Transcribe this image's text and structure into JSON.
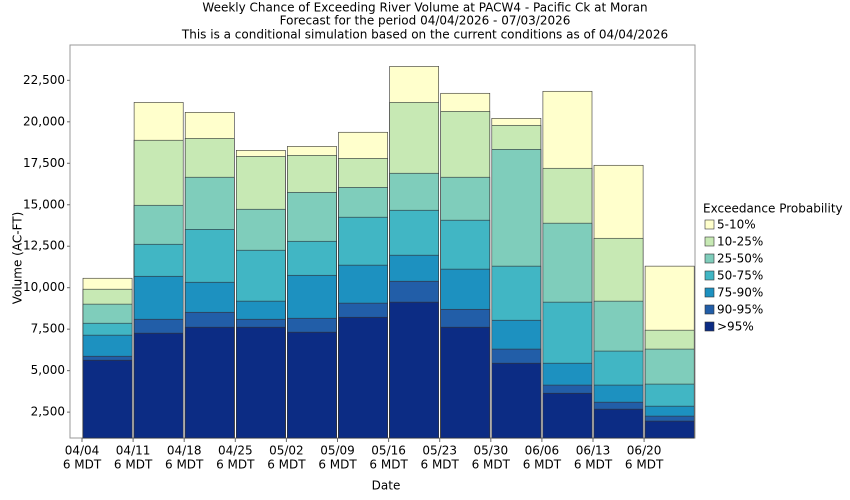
{
  "chart_data": {
    "type": "bar",
    "title": "Weekly Chance of Exceeding River Volume at PACW4 - Pacific Ck at Moran",
    "subtitle": "Forecast for the period 04/04/2026 - 07/03/2026",
    "note": "This is a conditional simulation based on the current conditions as of 04/04/2026",
    "x_label": "Date",
    "y_label": "Volume (AC-FT)",
    "legend_title": "Exceedance Probability",
    "categories": [
      "04/04",
      "04/11",
      "04/18",
      "04/25",
      "05/02",
      "05/09",
      "05/16",
      "05/23",
      "05/30",
      "06/06",
      "06/13",
      "06/20"
    ],
    "category_times": [
      "6 MDT",
      "6 MDT",
      "6 MDT",
      "6 MDT",
      "6 MDT",
      "6 MDT",
      "6 MDT",
      "6 MDT",
      "6 MDT",
      "6 MDT",
      "6 MDT",
      "6 MDT"
    ],
    "series": [
      {
        "name": "5-10%",
        "color": "#ffffcc",
        "values": [
          10570,
          21170,
          20570,
          18280,
          18520,
          19370,
          23340,
          21720,
          20210,
          21840,
          17380,
          11300
        ]
      },
      {
        "name": "10-25%",
        "color": "#c7e9b4",
        "values": [
          9910,
          18890,
          19000,
          17920,
          17980,
          17800,
          21170,
          20630,
          19790,
          17200,
          12980,
          7440
        ]
      },
      {
        "name": "25-50%",
        "color": "#7fcdbb",
        "values": [
          9010,
          14970,
          16660,
          14730,
          15750,
          16050,
          16900,
          16660,
          18340,
          13890,
          9190,
          6300
        ]
      },
      {
        "name": "50-75%",
        "color": "#41b6c4",
        "values": [
          7860,
          12620,
          13520,
          12260,
          12800,
          14250,
          14670,
          14070,
          11300,
          9130,
          6180,
          4190
        ]
      },
      {
        "name": "75-90%",
        "color": "#1d91c0",
        "values": [
          7140,
          10690,
          10330,
          9190,
          10750,
          11360,
          11960,
          11120,
          8040,
          5450,
          4130,
          2860
        ]
      },
      {
        "name": "90-95%",
        "color": "#225ea8",
        "values": [
          5870,
          8100,
          8520,
          8100,
          8160,
          9070,
          10390,
          8700,
          6300,
          4130,
          3100,
          2260
        ]
      },
      {
        "name": ">95%",
        "color": "#0c2c84",
        "values": [
          5630,
          7260,
          7620,
          7620,
          7320,
          8220,
          9130,
          7620,
          5450,
          3640,
          2680,
          1960
        ]
      }
    ],
    "ylim": [
      940,
      24630
    ],
    "yticks": [
      {
        "value": 2500,
        "label": "2,500"
      },
      {
        "value": 5000,
        "label": "5,000"
      },
      {
        "value": 7500,
        "label": "7,500"
      },
      {
        "value": 10000,
        "label": "10,000"
      },
      {
        "value": 12500,
        "label": "12,500"
      },
      {
        "value": 15000,
        "label": "15,000"
      },
      {
        "value": 17500,
        "label": "17,500"
      },
      {
        "value": 20000,
        "label": "20,000"
      },
      {
        "value": 22500,
        "label": "22,500"
      }
    ],
    "grid": false,
    "legend_position": "right"
  }
}
